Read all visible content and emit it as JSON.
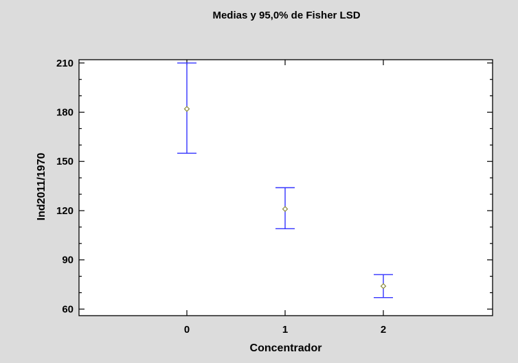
{
  "chart_data": {
    "type": "scatter",
    "title": "Medias y 95,0% de Fisher LSD",
    "xlabel": "Concentrador",
    "ylabel": "Ind2011/1970",
    "categories": [
      "0",
      "1",
      "2"
    ],
    "means": [
      182,
      121,
      74
    ],
    "lower": [
      155,
      109,
      67
    ],
    "upper": [
      210,
      134,
      81
    ],
    "ylim": [
      56,
      212
    ],
    "yticks": [
      "60",
      "90",
      "120",
      "150",
      "180",
      "210"
    ],
    "grid": false,
    "colors": {
      "errorbar": "#3333ff",
      "marker": "#8c8c3c",
      "plot_bg": "#ffffff",
      "figure_bg": "#dcdcdc"
    }
  }
}
